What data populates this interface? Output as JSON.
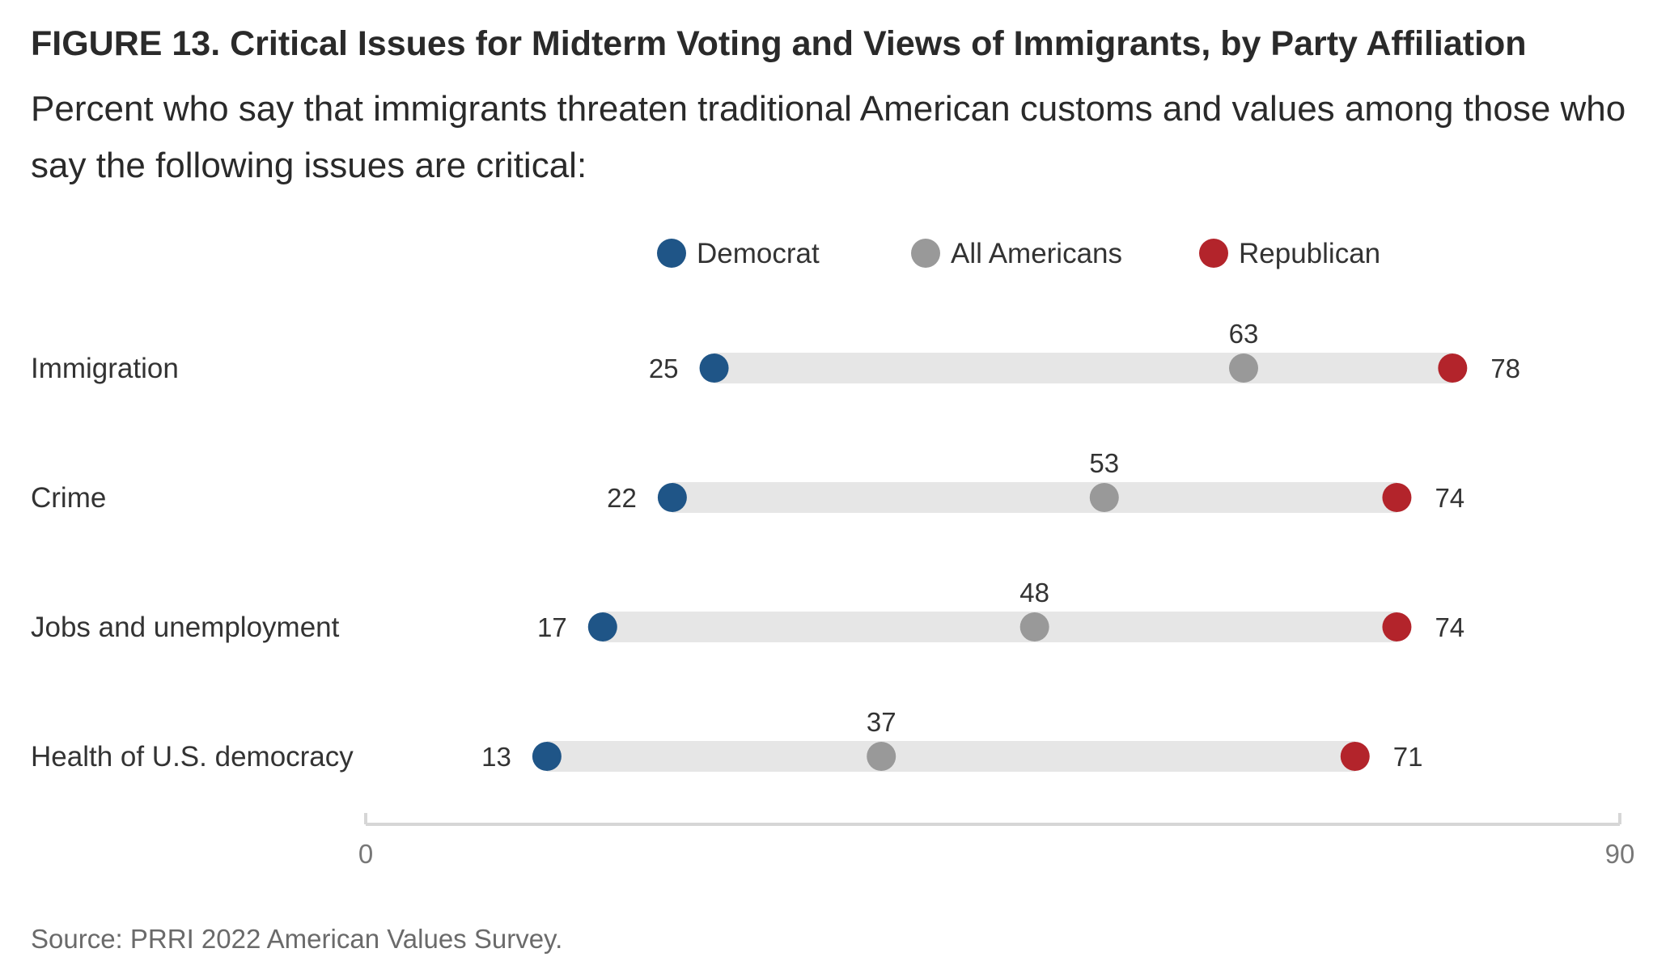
{
  "figure": {
    "title": "FIGURE 13.  Critical Issues for Midterm Voting and Views of Immigrants, by Party Affiliation",
    "subtitle": "Percent who say that immigrants threaten traditional American customs and values among those who say the following issues are critical:",
    "source": "Source: PRRI 2022 American Values Survey."
  },
  "colors": {
    "democrat": "#1f5587",
    "all_americans": "#999999",
    "republican": "#b3242b",
    "track": "#e6e6e6",
    "axis": "#d6d6d6"
  },
  "chart_data": {
    "type": "scatter",
    "subtype": "dumbbell",
    "categories": [
      "Immigration",
      "Crime",
      "Jobs and unemployment",
      "Health of U.S. democracy"
    ],
    "series": [
      {
        "name": "Democrat",
        "values": [
          25,
          22,
          17,
          13
        ]
      },
      {
        "name": "All Americans",
        "values": [
          63,
          53,
          48,
          37
        ]
      },
      {
        "name": "Republican",
        "values": [
          78,
          74,
          74,
          71
        ]
      }
    ],
    "xlim": [
      0,
      90
    ],
    "x_ticks": [
      "0",
      "90"
    ],
    "legend_position": "top-center",
    "grid": false
  }
}
